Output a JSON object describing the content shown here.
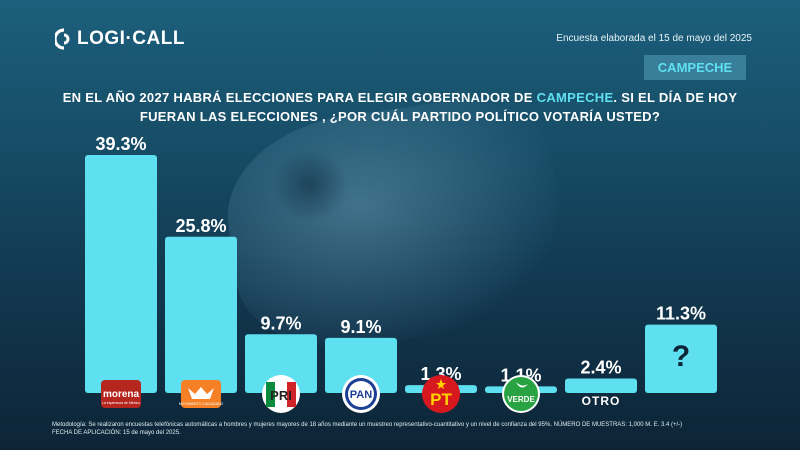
{
  "brand": {
    "name": "LOGI·CALL"
  },
  "survey_date": "Encuesta elaborada el 15 de mayo del 2025",
  "region_badge": "CAMPECHE",
  "question": {
    "part1": "EN EL AÑO 2027 HABRÁ ELECCIONES PARA ELEGIR GOBERNADOR DE ",
    "highlight": "CAMPECHE",
    "part2": ".  SI EL DÍA DE HOY",
    "line2": "FUERAN LAS ELECCIONES , ¿POR CUÁL PARTIDO POLÍTICO VOTARÍA USTED?"
  },
  "chart_data": {
    "type": "bar",
    "categories": [
      "morena",
      "MOVIMIENTO CIUDADANO",
      "PRI",
      "PAN",
      "PT",
      "VERDE",
      "OTRO",
      "?"
    ],
    "values": [
      39.3,
      25.8,
      9.7,
      9.1,
      1.3,
      1.1,
      2.4,
      11.3
    ],
    "value_labels": [
      "39.3%",
      "25.8%",
      "9.7%",
      "9.1%",
      "1.3%",
      "1.1%",
      "2.4%",
      "11.3%"
    ],
    "ylim": [
      0,
      40
    ],
    "bar_color": "#5fe0f0",
    "logo_sublabels": {
      "morena": "La esperanza de México",
      "mc": "MOVIMIENTO CIUDADANO"
    },
    "grid": false,
    "legend": "none"
  },
  "colors": {
    "accent": "#5fe0f0",
    "morena": "#b5261e",
    "mc": "#f58025",
    "pri_green": "#0a8a3c",
    "pri_red": "#d1232a",
    "pan": "#1c3f94",
    "pt": "#d7191f",
    "pt_star": "#ffd200",
    "verde": "#29a341"
  },
  "footer": {
    "line1": "Metodología: Se realizaron encuestas telefónicas automáticas a hombres y mujeres mayores de 18 años mediante un muestreo representativo-cuantitativo y un nivel de confianza del 95%. NÚMERO DE MUESTRAS: 1,000 M. E. 3.4 (+/-)",
    "line2": "FECHA DE APLICACIÓN: 15 de mayo del 2025."
  }
}
